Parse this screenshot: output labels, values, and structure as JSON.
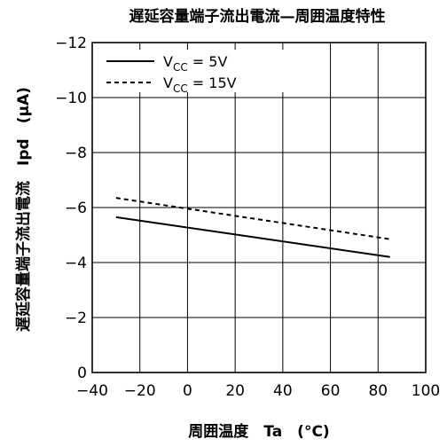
{
  "chart_data": {
    "type": "line",
    "title": "遅延容量端子流出電流—周囲温度特性",
    "xlabel": "周囲温度　Ta　(°C)",
    "ylabel": "遅延容量端子流出電流　Ipd　(μA)",
    "xlim": [
      -40,
      100
    ],
    "ylim": [
      0,
      -12
    ],
    "x_ticks": [
      "−40",
      "−20",
      "0",
      "20",
      "40",
      "60",
      "80",
      "100"
    ],
    "y_ticks": [
      "−12",
      "−10",
      "−8",
      "−6",
      "−4",
      "−2",
      "0"
    ],
    "grid": true,
    "legend_position": "top-left",
    "series": [
      {
        "name": "V_CC = 5V",
        "legend_main": "V",
        "legend_sub": "CC",
        "legend_rest": " = 5V",
        "style": "solid",
        "x": [
          -30,
          85
        ],
        "y": [
          -5.65,
          -4.2
        ]
      },
      {
        "name": "V_CC = 15V",
        "legend_main": "V",
        "legend_sub": "CC",
        "legend_rest": " = 15V",
        "style": "dashed",
        "x": [
          -30,
          85
        ],
        "y": [
          -6.35,
          -4.85
        ]
      }
    ]
  }
}
